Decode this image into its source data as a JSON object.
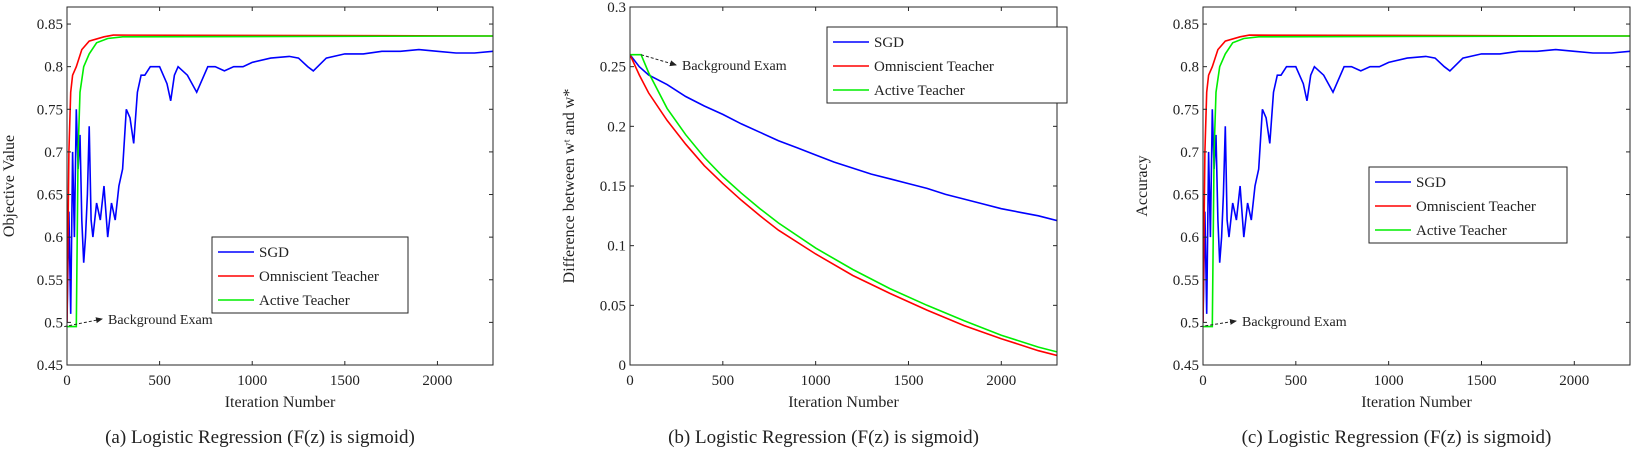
{
  "chart_data": [
    {
      "type": "line",
      "caption": "(a) Logistic Regression (F(z) is sigmoid)",
      "xlabel": "Iteration Number",
      "ylabel": "Objective Value",
      "xlim": [
        0,
        2300
      ],
      "ylim": [
        0.45,
        0.87
      ],
      "xticks": [
        0,
        500,
        1000,
        1500,
        2000
      ],
      "yticks": [
        0.45,
        0.5,
        0.55,
        0.6,
        0.65,
        0.7,
        0.75,
        0.8,
        0.85
      ],
      "ytick_labels": [
        "0.45",
        "0.5",
        "0.55",
        "0.6",
        "0.65",
        "0.7",
        "0.75",
        "0.8",
        "0.85"
      ],
      "legend_position": "lower-right",
      "annotation": {
        "text": "Background Exam",
        "x": 50,
        "y": 0.495
      },
      "series": [
        {
          "name": "SGD",
          "color": "#0000ff",
          "x": [
            0,
            10,
            20,
            30,
            40,
            50,
            60,
            70,
            80,
            90,
            100,
            110,
            120,
            130,
            140,
            160,
            180,
            200,
            220,
            240,
            260,
            280,
            300,
            320,
            340,
            360,
            380,
            400,
            420,
            450,
            500,
            540,
            560,
            580,
            600,
            650,
            700,
            720,
            760,
            800,
            850,
            900,
            950,
            1000,
            1100,
            1200,
            1250,
            1300,
            1330,
            1400,
            1500,
            1600,
            1700,
            1800,
            1900,
            2000,
            2100,
            2200,
            2300
          ],
          "y": [
            0.5,
            0.63,
            0.51,
            0.7,
            0.6,
            0.75,
            0.68,
            0.72,
            0.62,
            0.57,
            0.6,
            0.65,
            0.73,
            0.62,
            0.6,
            0.64,
            0.62,
            0.66,
            0.6,
            0.64,
            0.62,
            0.66,
            0.68,
            0.75,
            0.74,
            0.71,
            0.77,
            0.79,
            0.79,
            0.8,
            0.8,
            0.78,
            0.76,
            0.79,
            0.8,
            0.79,
            0.77,
            0.78,
            0.8,
            0.8,
            0.795,
            0.8,
            0.8,
            0.805,
            0.81,
            0.812,
            0.81,
            0.8,
            0.795,
            0.81,
            0.815,
            0.815,
            0.818,
            0.818,
            0.82,
            0.818,
            0.816,
            0.816,
            0.818
          ]
        },
        {
          "name": "Omniscient Teacher",
          "color": "#ff0000",
          "x": [
            0,
            10,
            20,
            30,
            50,
            80,
            120,
            200,
            250,
            2300
          ],
          "y": [
            0.5,
            0.7,
            0.77,
            0.79,
            0.8,
            0.82,
            0.83,
            0.835,
            0.837,
            0.836
          ]
        },
        {
          "name": "Active Teacher",
          "color": "#00ee00",
          "x": [
            0,
            50,
            60,
            70,
            90,
            120,
            160,
            220,
            300,
            2300
          ],
          "y": [
            0.495,
            0.495,
            0.7,
            0.77,
            0.8,
            0.815,
            0.828,
            0.833,
            0.835,
            0.836
          ]
        }
      ]
    },
    {
      "type": "line",
      "caption": "(b) Logistic Regression (F(z) is sigmoid)",
      "xlabel": "Iteration Number",
      "ylabel": "Difference between wᵗ and w*",
      "xlim": [
        0,
        2300
      ],
      "ylim": [
        0,
        0.3
      ],
      "xticks": [
        0,
        500,
        1000,
        1500,
        2000
      ],
      "yticks": [
        0,
        0.05,
        0.1,
        0.15,
        0.2,
        0.25,
        0.3
      ],
      "ytick_labels": [
        "0",
        "0.05",
        "0.1",
        "0.15",
        "0.2",
        "0.25",
        "0.3"
      ],
      "legend_position": "top-right",
      "annotation": {
        "text": "Background Exam",
        "x": 60,
        "y": 0.26
      },
      "series": [
        {
          "name": "SGD",
          "color": "#0000ff",
          "x": [
            0,
            50,
            100,
            200,
            300,
            400,
            500,
            600,
            700,
            800,
            900,
            1000,
            1100,
            1200,
            1300,
            1400,
            1500,
            1600,
            1700,
            1800,
            1900,
            2000,
            2100,
            2200,
            2300
          ],
          "y": [
            0.26,
            0.25,
            0.243,
            0.235,
            0.225,
            0.217,
            0.21,
            0.202,
            0.195,
            0.188,
            0.182,
            0.176,
            0.17,
            0.165,
            0.16,
            0.156,
            0.152,
            0.148,
            0.143,
            0.139,
            0.135,
            0.131,
            0.128,
            0.125,
            0.121
          ]
        },
        {
          "name": "Omniscient Teacher",
          "color": "#ff0000",
          "x": [
            0,
            50,
            100,
            200,
            300,
            400,
            500,
            600,
            700,
            800,
            1000,
            1200,
            1400,
            1600,
            1800,
            2000,
            2200,
            2300
          ],
          "y": [
            0.26,
            0.243,
            0.228,
            0.205,
            0.185,
            0.167,
            0.152,
            0.138,
            0.125,
            0.113,
            0.093,
            0.075,
            0.06,
            0.046,
            0.033,
            0.022,
            0.012,
            0.008
          ]
        },
        {
          "name": "Active Teacher",
          "color": "#00ee00",
          "x": [
            0,
            60,
            100,
            200,
            300,
            400,
            500,
            600,
            700,
            800,
            1000,
            1200,
            1400,
            1600,
            1800,
            2000,
            2200,
            2300
          ],
          "y": [
            0.26,
            0.26,
            0.245,
            0.215,
            0.193,
            0.174,
            0.158,
            0.144,
            0.131,
            0.119,
            0.098,
            0.08,
            0.064,
            0.05,
            0.037,
            0.025,
            0.015,
            0.011
          ]
        }
      ]
    },
    {
      "type": "line",
      "caption": "(c) Logistic Regression (F(z) is sigmoid)",
      "xlabel": "Iteration Number",
      "ylabel": "Accuracy",
      "xlim": [
        0,
        2300
      ],
      "ylim": [
        0.45,
        0.87
      ],
      "xticks": [
        0,
        500,
        1000,
        1500,
        2000
      ],
      "yticks": [
        0.45,
        0.5,
        0.55,
        0.6,
        0.65,
        0.7,
        0.75,
        0.8,
        0.85
      ],
      "ytick_labels": [
        "0.45",
        "0.5",
        "0.55",
        "0.6",
        "0.65",
        "0.7",
        "0.75",
        "0.8",
        "0.85"
      ],
      "legend_position": "right",
      "annotation": {
        "text": "Background Exam",
        "x": 50,
        "y": 0.495
      },
      "series": [
        {
          "name": "SGD",
          "color": "#0000ff",
          "x": [
            0,
            10,
            20,
            30,
            40,
            50,
            60,
            70,
            80,
            90,
            100,
            110,
            120,
            130,
            140,
            160,
            180,
            200,
            220,
            240,
            260,
            280,
            300,
            320,
            340,
            360,
            380,
            400,
            420,
            450,
            500,
            540,
            560,
            580,
            600,
            650,
            700,
            720,
            760,
            800,
            850,
            900,
            950,
            1000,
            1100,
            1200,
            1250,
            1300,
            1330,
            1400,
            1500,
            1600,
            1700,
            1800,
            1900,
            2000,
            2100,
            2200,
            2300
          ],
          "y": [
            0.5,
            0.63,
            0.51,
            0.7,
            0.6,
            0.75,
            0.68,
            0.72,
            0.62,
            0.57,
            0.6,
            0.65,
            0.73,
            0.62,
            0.6,
            0.64,
            0.62,
            0.66,
            0.6,
            0.64,
            0.62,
            0.66,
            0.68,
            0.75,
            0.74,
            0.71,
            0.77,
            0.79,
            0.79,
            0.8,
            0.8,
            0.78,
            0.76,
            0.79,
            0.8,
            0.79,
            0.77,
            0.78,
            0.8,
            0.8,
            0.795,
            0.8,
            0.8,
            0.805,
            0.81,
            0.812,
            0.81,
            0.8,
            0.795,
            0.81,
            0.815,
            0.815,
            0.818,
            0.818,
            0.82,
            0.818,
            0.816,
            0.816,
            0.818
          ]
        },
        {
          "name": "Omniscient Teacher",
          "color": "#ff0000",
          "x": [
            0,
            10,
            20,
            30,
            50,
            80,
            120,
            200,
            250,
            2300
          ],
          "y": [
            0.5,
            0.7,
            0.77,
            0.79,
            0.8,
            0.82,
            0.83,
            0.835,
            0.837,
            0.836
          ]
        },
        {
          "name": "Active Teacher",
          "color": "#00ee00",
          "x": [
            0,
            50,
            60,
            70,
            90,
            120,
            160,
            220,
            300,
            2300
          ],
          "y": [
            0.495,
            0.495,
            0.7,
            0.77,
            0.8,
            0.815,
            0.828,
            0.833,
            0.835,
            0.836
          ]
        }
      ]
    }
  ]
}
